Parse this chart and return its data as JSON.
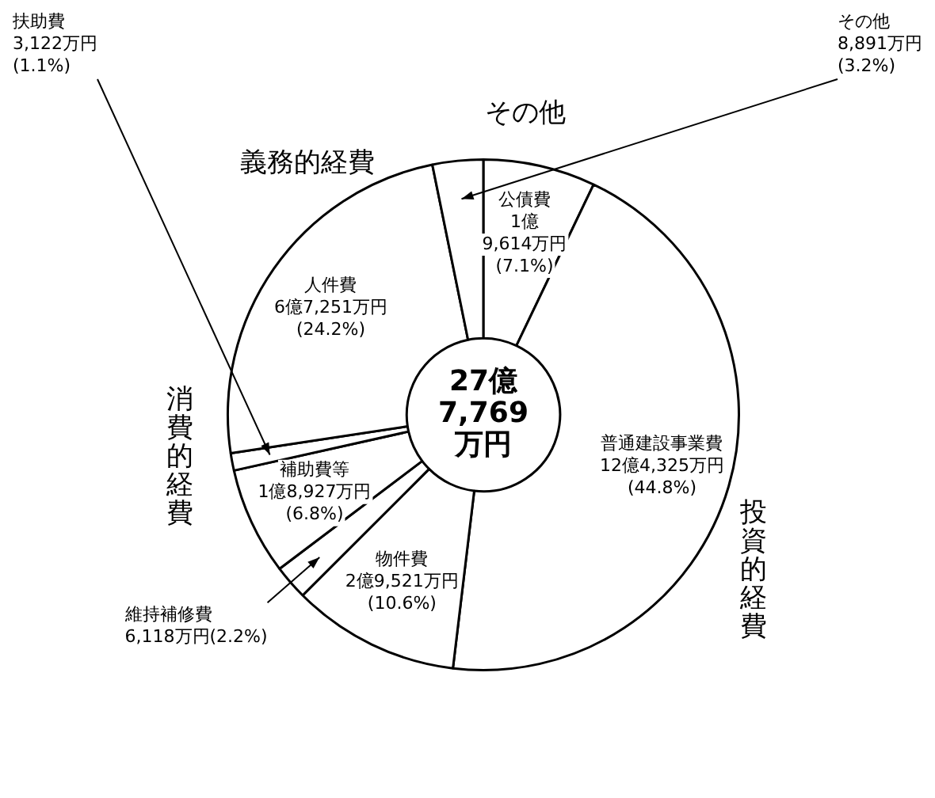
{
  "chart_data": {
    "type": "donut",
    "title": "27億\n7,769\n万円",
    "categories": [
      "公債費",
      "普通建設事業費",
      "物件費",
      "維持補修費",
      "補助費等",
      "扶助費",
      "人件費",
      "その他"
    ],
    "values": [
      7.1,
      44.8,
      10.6,
      2.2,
      6.8,
      1.1,
      24.2,
      3.2
    ],
    "value_labels": [
      "1億\n9,614万円\n(7.1%)",
      "12億4,325万円\n(44.8%)",
      "2億9,521万円\n(10.6%)",
      "6,118万円(2.2%)",
      "1億8,927万円\n(6.8%)",
      "3,122万円\n(1.1%)",
      "6億7,251万円\n(24.2%)",
      "8,891万円\n(3.2%)"
    ],
    "colors": [
      "#ffffff",
      "#ffffff",
      "#ffffff",
      "#ffffff",
      "#ffffff",
      "#ffffff",
      "#ffffff",
      "#ffffff"
    ],
    "annotations": [
      "義務的経費",
      "その他",
      "消費的経費",
      "投資的経費"
    ]
  }
}
